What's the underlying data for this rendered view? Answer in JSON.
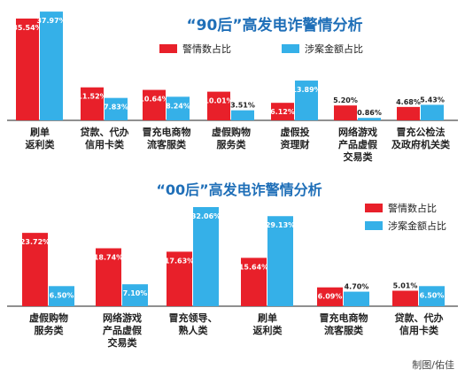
{
  "colors": {
    "series_primary": "#e8202a",
    "series_secondary": "#35b0e8",
    "title": "#1f6fb8",
    "axis": "#222222"
  },
  "credit": "制图/佑佳",
  "chart_data": [
    {
      "type": "bar",
      "title": "“90后”高发电诈警情分析",
      "categories": [
        [
          "刷单",
          "返利类"
        ],
        [
          "贷款、代办",
          "信用卡类"
        ],
        [
          "冒充电商物",
          "流客服类"
        ],
        [
          "虚假购物",
          "服务类"
        ],
        [
          "虚假投",
          "资理财"
        ],
        [
          "网络游戏",
          "产品虚假",
          "交易类"
        ],
        [
          "冒充公检法",
          "及政府机关类"
        ]
      ],
      "series": [
        {
          "name": "警情数占比",
          "values": [
            35.54,
            11.52,
            10.64,
            10.01,
            6.12,
            5.2,
            4.68
          ],
          "labels": [
            "35.54%",
            "11.52%",
            "10.64%",
            "10.01%",
            "6.12%",
            "5.20%",
            "4.68%"
          ]
        },
        {
          "name": "涉案金额占比",
          "values": [
            37.97,
            7.83,
            8.24,
            3.51,
            13.89,
            0.86,
            5.43
          ],
          "labels": [
            "37.97%",
            "7.83%",
            "8.24%",
            "3.51%",
            "13.89%",
            "0.86%",
            "5.43%"
          ]
        }
      ],
      "ylim": [
        0,
        38
      ],
      "legend": "top"
    },
    {
      "type": "bar",
      "title": "“00后”高发电诈警情分析",
      "categories": [
        [
          "虚假购物",
          "服务类"
        ],
        [
          "网络游戏",
          "产品虚假",
          "交易类"
        ],
        [
          "冒充领导、",
          "熟人类"
        ],
        [
          "刷单",
          "返利类"
        ],
        [
          "冒充电商物",
          "流客服类"
        ],
        [
          "贷款、代办",
          "信用卡类"
        ]
      ],
      "series": [
        {
          "name": "警情数占比",
          "values": [
            23.72,
            18.74,
            17.63,
            15.64,
            6.09,
            5.01
          ],
          "labels": [
            "23.72%",
            "18.74%",
            "17.63%",
            "15.64%",
            "6.09%",
            "5.01%"
          ]
        },
        {
          "name": "涉案金额占比",
          "values": [
            6.5,
            7.1,
            32.06,
            29.13,
            4.7,
            6.5
          ],
          "labels": [
            "6.50%",
            "7.10%",
            "32.06%",
            "29.13%",
            "4.70%",
            "6.50%"
          ]
        }
      ],
      "ylim": [
        0,
        32.06
      ],
      "legend": "top-right"
    }
  ]
}
